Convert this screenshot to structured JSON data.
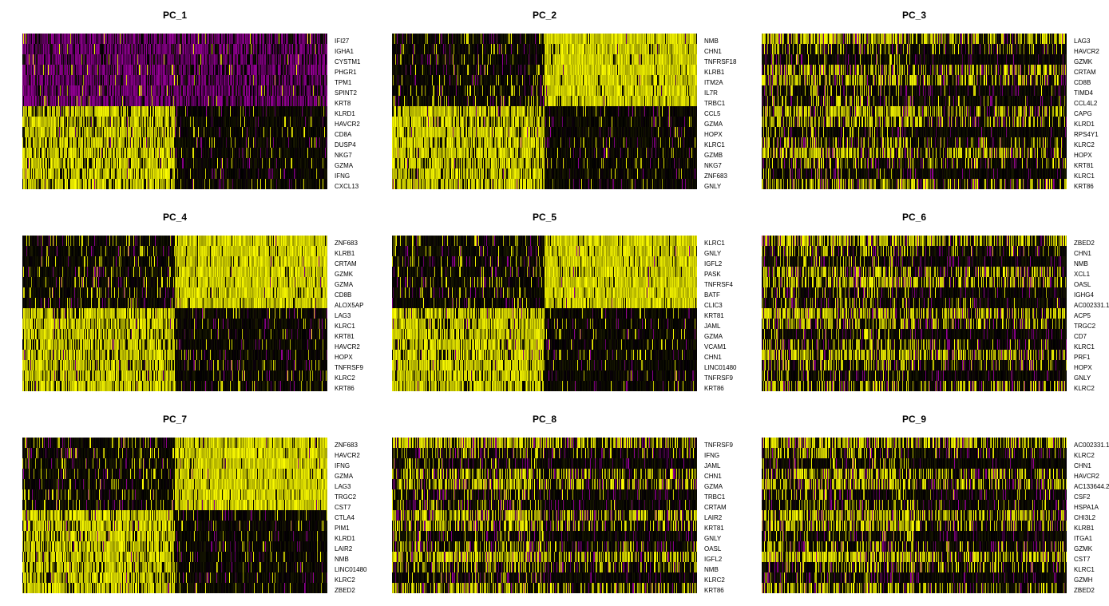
{
  "chart_data": [
    {
      "type": "heatmap",
      "title": "PC_1",
      "split": 0.5,
      "pattern": "PPPPPPPYYYYYYYY",
      "genes": [
        "IFI27",
        "IGHA1",
        "CYSTM1",
        "PHGR1",
        "TPM1",
        "SPINT2",
        "KRT8",
        "KLRD1",
        "HAVCR2",
        "CD8A",
        "DUSP4",
        "NKG7",
        "GZMA",
        "IFNG",
        "CXCL13"
      ]
    },
    {
      "type": "heatmap",
      "title": "PC_2",
      "split": 0.5,
      "pattern": "DDDDDDDYYYYYYYY",
      "genes": [
        "NMB",
        "CHN1",
        "TNFRSF18",
        "KLRB1",
        "ITM2A",
        "IL7R",
        "TRBC1",
        "CCL5",
        "GZMA",
        "HOPX",
        "KLRC1",
        "GZMB",
        "NKG7",
        "ZNF683",
        "GNLY"
      ]
    },
    {
      "type": "heatmap",
      "title": "PC_3",
      "split": 0.5,
      "pattern": "MMMMMMMMMMMMMMM",
      "genes": [
        "LAG3",
        "HAVCR2",
        "GZMK",
        "CRTAM",
        "CD8B",
        "TIMD4",
        "CCL4L2",
        "CAPG",
        "KLRD1",
        "RPS4Y1",
        "KLRC2",
        "HOPX",
        "KRT81",
        "KLRC1",
        "KRT86"
      ]
    },
    {
      "type": "heatmap",
      "title": "PC_4",
      "split": 0.5,
      "pattern": "DDDDDDDYYYYYYYY",
      "genes": [
        "ZNF683",
        "KLRB1",
        "CRTAM",
        "GZMK",
        "GZMA",
        "CD8B",
        "ALOX5AP",
        "LAG3",
        "KLRC1",
        "KRT81",
        "HAVCR2",
        "HOPX",
        "TNFRSF9",
        "KLRC2",
        "KRT86"
      ]
    },
    {
      "type": "heatmap",
      "title": "PC_5",
      "split": 0.5,
      "pattern": "DDDDDDDYYYYYYYY",
      "genes": [
        "KLRC1",
        "GNLY",
        "IGFL2",
        "PASK",
        "TNFRSF4",
        "BATF",
        "CLIC3",
        "KRT81",
        "JAML",
        "GZMA",
        "VCAM1",
        "CHN1",
        "LINC01480",
        "TNFRSF9",
        "KRT86"
      ]
    },
    {
      "type": "heatmap",
      "title": "PC_6",
      "split": 0.5,
      "pattern": "MMMMMMMMMMMMMMM",
      "genes": [
        "ZBED2",
        "CHN1",
        "NMB",
        "XCL1",
        "OASL",
        "IGHG4",
        "AC002331.1",
        "ACP5",
        "TRGC2",
        "CD7",
        "KLRC1",
        "PRF1",
        "HOPX",
        "GNLY",
        "KLRC2"
      ]
    },
    {
      "type": "heatmap",
      "title": "PC_7",
      "split": 0.5,
      "pattern": "DDDDDDDYYYYYYYY",
      "genes": [
        "ZNF683",
        "HAVCR2",
        "IFNG",
        "GZMA",
        "LAG3",
        "TRGC2",
        "CST7",
        "CTLA4",
        "PIM1",
        "KLRD1",
        "LAIR2",
        "NMB",
        "LINC01480",
        "KLRC2",
        "ZBED2"
      ]
    },
    {
      "type": "heatmap",
      "title": "PC_8",
      "split": 0.5,
      "pattern": "MMMMMMMMMMMMMMM",
      "genes": [
        "TNFRSF9",
        "IFNG",
        "JAML",
        "CHN1",
        "GZMA",
        "TRBC1",
        "CRTAM",
        "LAIR2",
        "KRT81",
        "GNLY",
        "OASL",
        "IGFL2",
        "NMB",
        "KLRC2",
        "KRT86"
      ]
    },
    {
      "type": "heatmap",
      "title": "PC_9",
      "split": 0.5,
      "pattern": "MMMMMMMMMMMMMMM",
      "genes": [
        "AC002331.1",
        "KLRC2",
        "CHN1",
        "HAVCR2",
        "AC133644.2",
        "CSF2",
        "HSPA1A",
        "CHI3L2",
        "KLRB1",
        "ITGA1",
        "GZMK",
        "CST7",
        "KLRC1",
        "GZMH",
        "ZBED2"
      ]
    }
  ],
  "colors": {
    "low": "#ff00ff",
    "mid": "#000000",
    "high": "#ffff00",
    "background": "#ffffff"
  }
}
